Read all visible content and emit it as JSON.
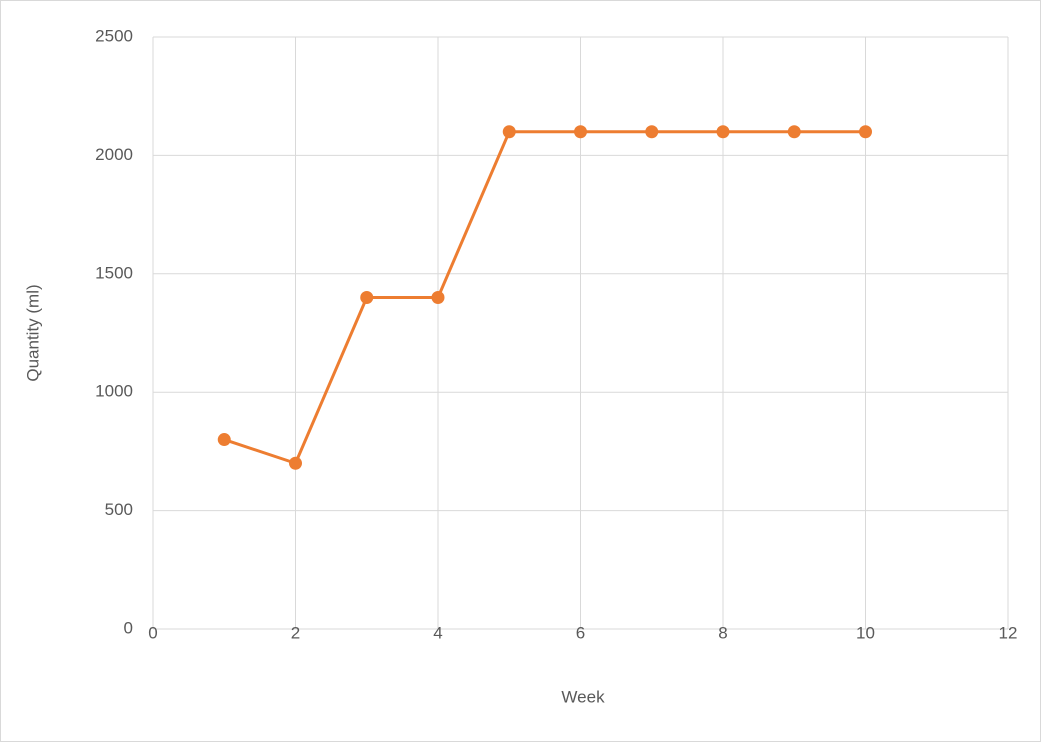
{
  "chart_data": {
    "type": "line",
    "x": [
      1,
      2,
      3,
      4,
      5,
      6,
      7,
      8,
      9,
      10
    ],
    "values": [
      800,
      700,
      1400,
      1400,
      2100,
      2100,
      2100,
      2100,
      2100,
      2100
    ],
    "color": "#ed7d31",
    "xlabel": "Week",
    "ylabel": "Quantity (ml)",
    "xlim": [
      0,
      12
    ],
    "xticks": [
      0,
      2,
      4,
      6,
      8,
      10,
      12
    ],
    "ylim": [
      0,
      2500
    ],
    "yticks": [
      0,
      500,
      1000,
      1500,
      2000,
      2500
    ],
    "grid": true
  }
}
